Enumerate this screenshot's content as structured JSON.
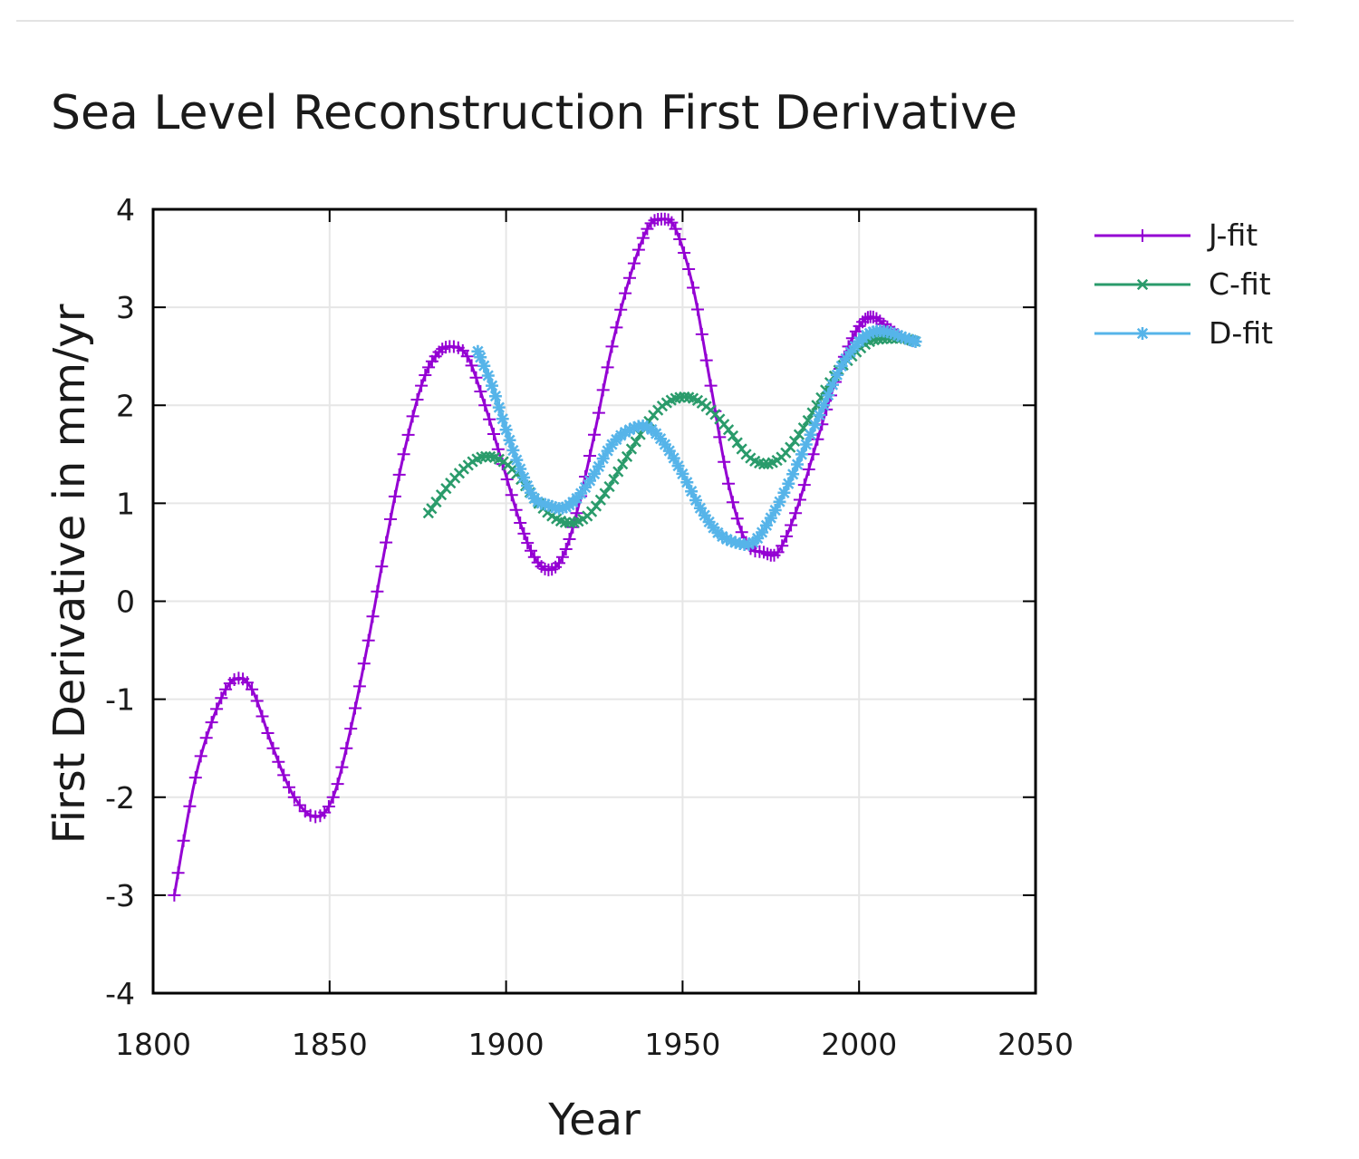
{
  "chart_data": {
    "type": "line",
    "title": "Sea Level Reconstruction First Derivative",
    "xlabel": "Year",
    "ylabel": "First Derivative in mm/yr",
    "xlim": [
      1800,
      2050
    ],
    "ylim": [
      -4,
      4
    ],
    "xticks": [
      "1800",
      "1850",
      "1900",
      "1950",
      "2000",
      "2050"
    ],
    "yticks": [
      "-4",
      "-3",
      "-2",
      "-1",
      "0",
      "1",
      "2",
      "3",
      "4"
    ],
    "grid": true,
    "legend_position": "top-right outside",
    "series": [
      {
        "name": "J-fit",
        "color": "#9400d3",
        "marker": "plus",
        "points": [
          [
            1806,
            -3.0
          ],
          [
            1812,
            -1.8
          ],
          [
            1818,
            -1.1
          ],
          [
            1823,
            -0.8
          ],
          [
            1828,
            -0.9
          ],
          [
            1834,
            -1.5
          ],
          [
            1840,
            -2.0
          ],
          [
            1846,
            -2.2
          ],
          [
            1851,
            -2.0
          ],
          [
            1856,
            -1.3
          ],
          [
            1861,
            -0.4
          ],
          [
            1866,
            0.6
          ],
          [
            1871,
            1.5
          ],
          [
            1876,
            2.2
          ],
          [
            1880,
            2.5
          ],
          [
            1884,
            2.6
          ],
          [
            1889,
            2.5
          ],
          [
            1894,
            2.0
          ],
          [
            1899,
            1.4
          ],
          [
            1904,
            0.8
          ],
          [
            1908,
            0.45
          ],
          [
            1912,
            0.32
          ],
          [
            1916,
            0.45
          ],
          [
            1920,
            0.9
          ],
          [
            1925,
            1.7
          ],
          [
            1930,
            2.6
          ],
          [
            1935,
            3.3
          ],
          [
            1940,
            3.8
          ],
          [
            1944,
            3.9
          ],
          [
            1948,
            3.8
          ],
          [
            1953,
            3.2
          ],
          [
            1958,
            2.2
          ],
          [
            1963,
            1.2
          ],
          [
            1968,
            0.6
          ],
          [
            1973,
            0.5
          ],
          [
            1977,
            0.5
          ],
          [
            1982,
            0.9
          ],
          [
            1987,
            1.5
          ],
          [
            1992,
            2.1
          ],
          [
            1997,
            2.6
          ],
          [
            2001,
            2.85
          ],
          [
            2004,
            2.9
          ],
          [
            2008,
            2.8
          ],
          [
            2012,
            2.7
          ],
          [
            2016,
            2.65
          ]
        ]
      },
      {
        "name": "C-fit",
        "color": "#2a9b6b",
        "marker": "x",
        "points": [
          [
            1878,
            0.9
          ],
          [
            1883,
            1.15
          ],
          [
            1888,
            1.35
          ],
          [
            1893,
            1.47
          ],
          [
            1898,
            1.45
          ],
          [
            1903,
            1.3
          ],
          [
            1908,
            1.05
          ],
          [
            1913,
            0.87
          ],
          [
            1918,
            0.8
          ],
          [
            1923,
            0.87
          ],
          [
            1928,
            1.1
          ],
          [
            1933,
            1.4
          ],
          [
            1938,
            1.7
          ],
          [
            1943,
            1.95
          ],
          [
            1948,
            2.07
          ],
          [
            1953,
            2.07
          ],
          [
            1958,
            1.95
          ],
          [
            1963,
            1.75
          ],
          [
            1968,
            1.5
          ],
          [
            1973,
            1.4
          ],
          [
            1978,
            1.47
          ],
          [
            1983,
            1.7
          ],
          [
            1988,
            2.0
          ],
          [
            1993,
            2.3
          ],
          [
            1998,
            2.5
          ],
          [
            2003,
            2.65
          ],
          [
            2008,
            2.68
          ],
          [
            2013,
            2.68
          ],
          [
            2016,
            2.65
          ]
        ]
      },
      {
        "name": "D-fit",
        "color": "#56b4e9",
        "marker": "star",
        "points": [
          [
            1892,
            2.55
          ],
          [
            1896,
            2.2
          ],
          [
            1900,
            1.75
          ],
          [
            1904,
            1.35
          ],
          [
            1908,
            1.05
          ],
          [
            1912,
            0.98
          ],
          [
            1916,
            0.95
          ],
          [
            1920,
            1.05
          ],
          [
            1925,
            1.3
          ],
          [
            1930,
            1.6
          ],
          [
            1935,
            1.75
          ],
          [
            1940,
            1.78
          ],
          [
            1945,
            1.6
          ],
          [
            1950,
            1.3
          ],
          [
            1955,
            0.95
          ],
          [
            1960,
            0.7
          ],
          [
            1965,
            0.6
          ],
          [
            1970,
            0.6
          ],
          [
            1975,
            0.85
          ],
          [
            1980,
            1.2
          ],
          [
            1985,
            1.6
          ],
          [
            1990,
            2.0
          ],
          [
            1995,
            2.4
          ],
          [
            2000,
            2.65
          ],
          [
            2004,
            2.75
          ],
          [
            2008,
            2.75
          ],
          [
            2012,
            2.7
          ],
          [
            2016,
            2.65
          ]
        ]
      }
    ]
  }
}
